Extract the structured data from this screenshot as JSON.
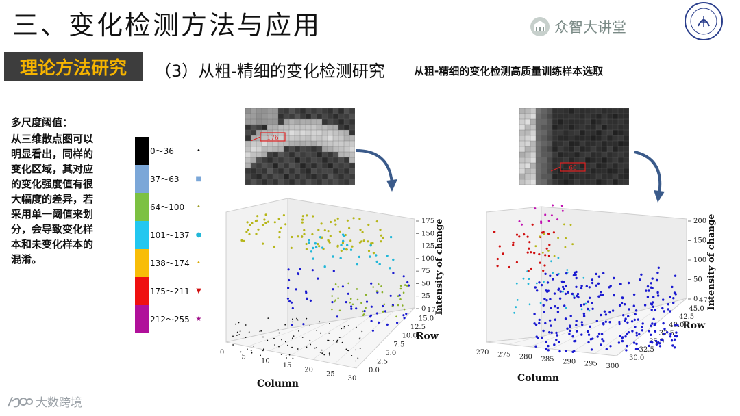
{
  "header": {
    "title": "三、变化检测方法与应用",
    "brand": "众智大讲堂",
    "seal_text": "JILIN UNIVERSITY CHINA"
  },
  "section": {
    "badge": "理论方法研究",
    "subtitle": "（3）从粗-精细的变化检测研究",
    "subnote": "从粗-精细的变化检测高质量训练样本选取"
  },
  "explanation": {
    "heading": "多尺度阈值：",
    "lines": [
      "从三维散点图可以",
      "明显看出，同样的",
      "变化区域，其对应",
      "的变化强度值有很",
      "大幅度的差异，若",
      "采用单一阈值来划",
      "分，会导致变化样",
      "本和未变化样本的",
      "混淆。"
    ]
  },
  "legend": [
    {
      "label": "0～36",
      "color": "#000000",
      "marker_color": "#000000",
      "marker": "•"
    },
    {
      "label": "37～63",
      "color": "#7ba7d8",
      "marker_color": "#7ba7d8",
      "marker": "■"
    },
    {
      "label": "64～100",
      "color": "#7cc142",
      "marker_color": "#9a9a20",
      "marker": "•"
    },
    {
      "label": "101～137",
      "color": "#22c7f0",
      "marker_color": "#22b7d8",
      "marker": "●"
    },
    {
      "label": "138～174",
      "color": "#f8bd08",
      "marker_color": "#d8a800",
      "marker": "•"
    },
    {
      "label": "175～211",
      "color": "#ef1010",
      "marker_color": "#d01010",
      "marker": "▼"
    },
    {
      "label": "212～255",
      "color": "#b0109a",
      "marker_color": "#a0108a",
      "marker": "★"
    }
  ],
  "thumbnails": [
    {
      "label": "176"
    },
    {
      "label": "60"
    }
  ],
  "plots": [
    {
      "zlabel": "Intensity of change",
      "xlabel": "Column",
      "ylabel": "Row",
      "zticks": [
        "0",
        "25",
        "50",
        "75",
        "100",
        "125",
        "150",
        "175"
      ],
      "xticks": [
        "0",
        "5",
        "10",
        "15",
        "20",
        "25",
        "30"
      ],
      "yticks": [
        "0.0",
        "2.5",
        "5.0",
        "7.5",
        "10.0",
        "12.5",
        "15.0",
        "17.5"
      ]
    },
    {
      "zlabel": "Intensity of change",
      "xlabel": "Column",
      "ylabel": "Row",
      "zticks": [
        "0",
        "50",
        "100",
        "150",
        "200"
      ],
      "xticks": [
        "270",
        "275",
        "280",
        "285",
        "290",
        "295",
        "300"
      ],
      "yticks": [
        "30.0",
        "32.5",
        "35.0",
        "37.5",
        "40.0",
        "42.5",
        "45.0",
        "47.5"
      ]
    }
  ],
  "watermark": "大数跨境"
}
